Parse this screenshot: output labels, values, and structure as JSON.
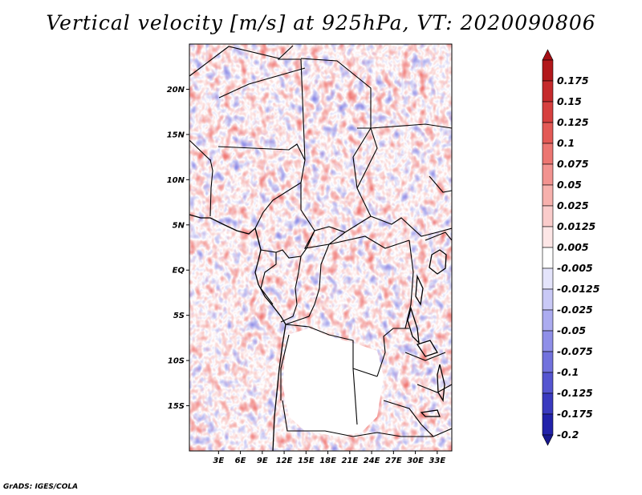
{
  "title": "Vertical velocity [m/s] at 925hPa, VT: 2020090806",
  "footer": "GrADS: IGES/COLA",
  "map": {
    "lon_range": [
      -1,
      35
    ],
    "lat_range": [
      -20,
      25
    ],
    "lat_ticks": [
      {
        "value": 20,
        "label": "20N"
      },
      {
        "value": 15,
        "label": "15N"
      },
      {
        "value": 10,
        "label": "10N"
      },
      {
        "value": 5,
        "label": "5N"
      },
      {
        "value": 0,
        "label": "EQ"
      },
      {
        "value": -5,
        "label": "5S"
      },
      {
        "value": -10,
        "label": "10S"
      },
      {
        "value": -15,
        "label": "15S"
      }
    ],
    "lon_ticks": [
      {
        "value": 3,
        "label": "3E"
      },
      {
        "value": 6,
        "label": "6E"
      },
      {
        "value": 9,
        "label": "9E"
      },
      {
        "value": 12,
        "label": "12E"
      },
      {
        "value": 15,
        "label": "15E"
      },
      {
        "value": 18,
        "label": "18E"
      },
      {
        "value": 21,
        "label": "21E"
      },
      {
        "value": 24,
        "label": "24E"
      },
      {
        "value": 27,
        "label": "27E"
      },
      {
        "value": 30,
        "label": "30E"
      },
      {
        "value": 33,
        "label": "33E"
      }
    ]
  },
  "colorbar": {
    "levels": [
      {
        "label": "0.175",
        "color": "#b2181b"
      },
      {
        "label": "0.15",
        "color": "#c52a2c"
      },
      {
        "label": "0.125",
        "color": "#d6403f"
      },
      {
        "label": "0.1",
        "color": "#e35a56"
      },
      {
        "label": "0.075",
        "color": "#ec7672"
      },
      {
        "label": "0.05",
        "color": "#f29390"
      },
      {
        "label": "0.025",
        "color": "#f7b1ad"
      },
      {
        "label": "0.0125",
        "color": "#facccb"
      },
      {
        "label": "0.005",
        "color": "#fde6e6"
      },
      {
        "label": "-0.005",
        "color": "#ffffff"
      },
      {
        "label": "-0.0125",
        "color": "#e4e4fb"
      },
      {
        "label": "-0.025",
        "color": "#c9c9f6"
      },
      {
        "label": "-0.05",
        "color": "#acacf0"
      },
      {
        "label": "-0.075",
        "color": "#8f8fe8"
      },
      {
        "label": "-0.1",
        "color": "#7272dd"
      },
      {
        "label": "-0.125",
        "color": "#5555d0"
      },
      {
        "label": "-0.175",
        "color": "#3a3abf"
      },
      {
        "label": "-0.2",
        "color": "#2222aa"
      }
    ],
    "top_color": "#a50f15",
    "bottom_color": "#18188f"
  }
}
